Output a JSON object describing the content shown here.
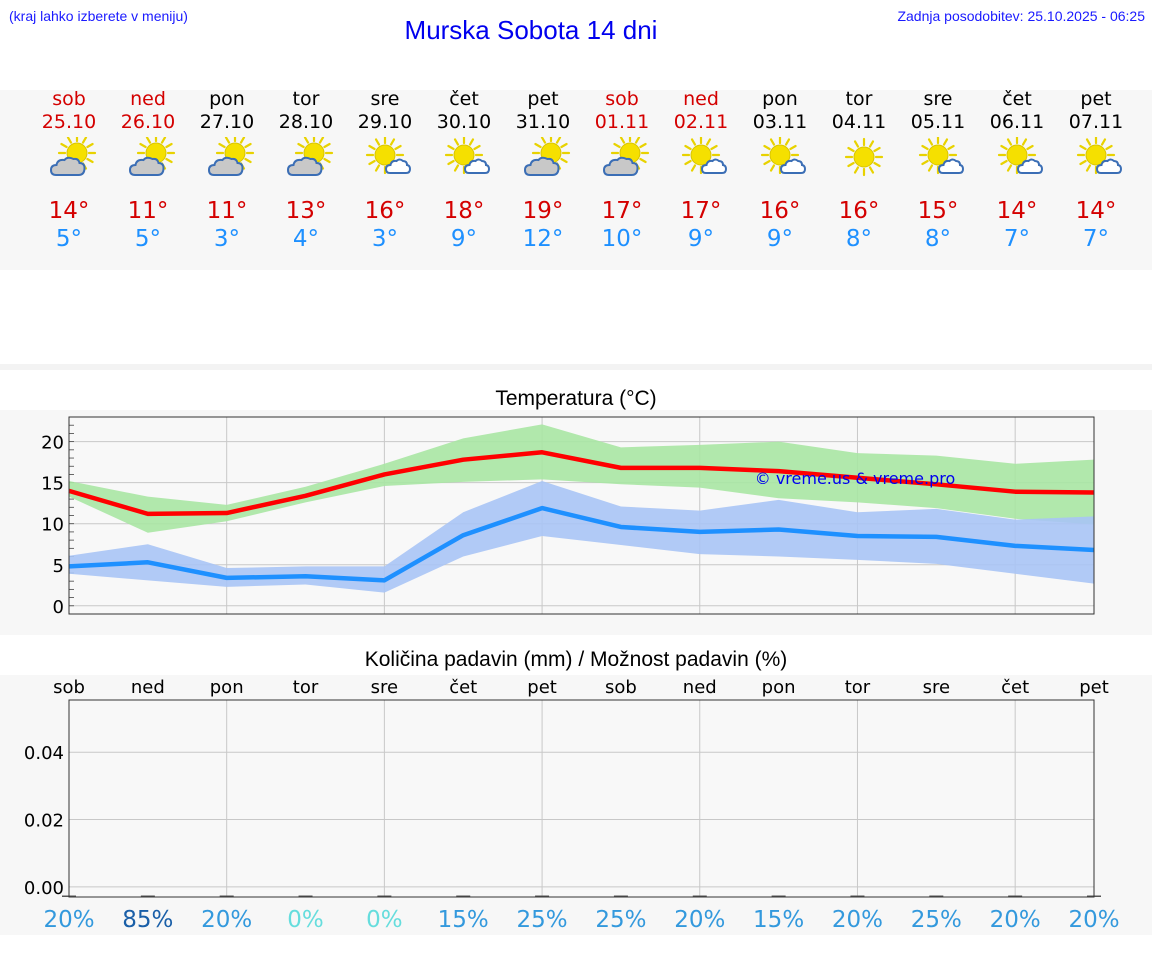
{
  "header": {
    "left_note": "(kraj lahko izberete v meniju)",
    "title": "Murska Sobota 14 dni",
    "updated": "Zadnja posodobitev: 25.10.2025 - 06:25"
  },
  "days": [
    {
      "name": "sob",
      "date": "25.10",
      "weekend": true,
      "icon": "sun-cloud-icon",
      "tmax": "14°",
      "tmin": "5°"
    },
    {
      "name": "ned",
      "date": "26.10",
      "weekend": true,
      "icon": "sun-cloud-icon",
      "tmax": "11°",
      "tmin": "5°"
    },
    {
      "name": "pon",
      "date": "27.10",
      "weekend": false,
      "icon": "sun-cloud-icon",
      "tmax": "11°",
      "tmin": "3°"
    },
    {
      "name": "tor",
      "date": "28.10",
      "weekend": false,
      "icon": "sun-cloud-icon",
      "tmax": "13°",
      "tmin": "4°"
    },
    {
      "name": "sre",
      "date": "29.10",
      "weekend": false,
      "icon": "sun-small-cloud-icon",
      "tmax": "16°",
      "tmin": "3°"
    },
    {
      "name": "čet",
      "date": "30.10",
      "weekend": false,
      "icon": "sun-small-cloud-icon",
      "tmax": "18°",
      "tmin": "9°"
    },
    {
      "name": "pet",
      "date": "31.10",
      "weekend": false,
      "icon": "sun-cloud-icon",
      "tmax": "19°",
      "tmin": "12°"
    },
    {
      "name": "sob",
      "date": "01.11",
      "weekend": true,
      "icon": "sun-cloud-icon",
      "tmax": "17°",
      "tmin": "10°"
    },
    {
      "name": "ned",
      "date": "02.11",
      "weekend": true,
      "icon": "sun-small-cloud-icon",
      "tmax": "17°",
      "tmin": "9°"
    },
    {
      "name": "pon",
      "date": "03.11",
      "weekend": false,
      "icon": "sun-small-cloud-icon",
      "tmax": "16°",
      "tmin": "9°"
    },
    {
      "name": "tor",
      "date": "04.11",
      "weekend": false,
      "icon": "sun-icon",
      "tmax": "16°",
      "tmin": "8°"
    },
    {
      "name": "sre",
      "date": "05.11",
      "weekend": false,
      "icon": "sun-small-cloud-icon",
      "tmax": "15°",
      "tmin": "8°"
    },
    {
      "name": "čet",
      "date": "06.11",
      "weekend": false,
      "icon": "sun-small-cloud-icon",
      "tmax": "14°",
      "tmin": "7°"
    },
    {
      "name": "pet",
      "date": "07.11",
      "weekend": false,
      "icon": "sun-small-cloud-icon",
      "tmax": "14°",
      "tmin": "7°"
    }
  ],
  "colors": {
    "weekend": "#d40000",
    "tmax_line": "#ff0000",
    "tmin_line": "#1e90ff",
    "tmax_band": "#a8e6a3",
    "tmin_band": "#a9c4f5",
    "title_blue": "#0000ee"
  },
  "chart_data": [
    {
      "type": "line",
      "title": "Temperatura (°C)",
      "watermark": "© vreme.us & vreme.pro",
      "x": [
        "25.10",
        "26.10",
        "27.10",
        "28.10",
        "29.10",
        "30.10",
        "31.10",
        "01.11",
        "02.11",
        "03.11",
        "04.11",
        "05.11",
        "06.11",
        "07.11"
      ],
      "ylim": [
        -1,
        23
      ],
      "yticks": [
        0,
        5,
        10,
        15,
        20
      ],
      "grid": true,
      "series": [
        {
          "values": [
            14.0,
            11.2,
            11.3,
            13.4,
            16.0,
            17.8,
            18.7,
            16.8,
            16.8,
            16.4,
            15.6,
            14.8,
            13.9,
            13.8
          ]
        },
        {
          "values": [
            4.8,
            5.3,
            3.4,
            3.6,
            3.1,
            8.6,
            11.9,
            9.6,
            9.0,
            9.3,
            8.5,
            8.4,
            7.3,
            6.8
          ]
        }
      ],
      "bands": [
        {
          "lower": [
            13.3,
            8.9,
            10.3,
            12.6,
            14.6,
            15.1,
            15.4,
            14.8,
            14.4,
            13.1,
            12.6,
            11.9,
            10.6,
            9.9
          ],
          "upper": [
            15.2,
            13.3,
            12.3,
            14.5,
            17.3,
            20.4,
            22.1,
            19.3,
            19.6,
            20.0,
            18.6,
            18.3,
            17.3,
            17.8
          ]
        },
        {
          "lower": [
            3.9,
            3.1,
            2.3,
            2.6,
            1.6,
            6.0,
            8.5,
            7.4,
            6.3,
            6.0,
            5.6,
            5.1,
            3.9,
            2.7
          ],
          "upper": [
            6.1,
            7.5,
            4.6,
            4.8,
            4.8,
            11.4,
            15.2,
            12.1,
            11.6,
            12.9,
            11.4,
            11.8,
            10.5,
            10.9
          ]
        }
      ]
    },
    {
      "type": "bar",
      "title": "Količina padavin (mm) / Možnost padavin (%)",
      "categories": [
        "sob",
        "ned",
        "pon",
        "tor",
        "sre",
        "čet",
        "pet",
        "sob",
        "ned",
        "pon",
        "tor",
        "sre",
        "čet",
        "pet"
      ],
      "values": [
        0,
        0,
        0,
        0,
        0,
        0,
        0,
        0,
        0,
        0,
        0,
        0,
        0,
        0
      ],
      "ylim": [
        -0.003,
        0.0555
      ],
      "yticks": [
        0.0,
        0.02,
        0.04
      ],
      "ytick_labels": [
        "0.00",
        "0.02",
        "0.04"
      ],
      "grid": true,
      "probability": [
        "20%",
        "85%",
        "20%",
        "0%",
        "0%",
        "15%",
        "25%",
        "25%",
        "20%",
        "15%",
        "20%",
        "25%",
        "20%",
        "20%"
      ],
      "probability_colors": [
        "#3399dd",
        "#1a5fa8",
        "#3399dd",
        "#66dddd",
        "#66dddd",
        "#3399dd",
        "#3399dd",
        "#3399dd",
        "#3399dd",
        "#3399dd",
        "#3399dd",
        "#3399dd",
        "#3399dd",
        "#3399dd"
      ]
    }
  ]
}
